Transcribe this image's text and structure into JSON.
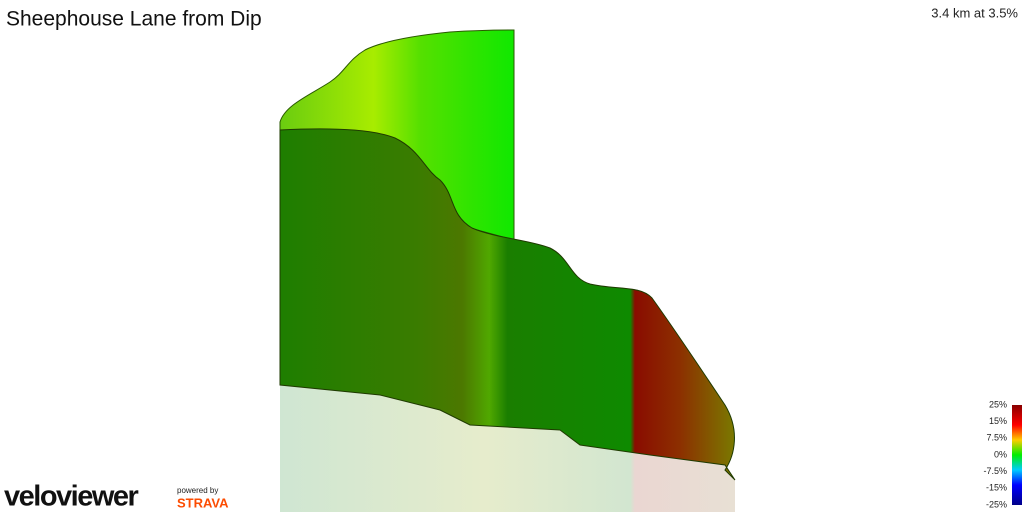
{
  "header": {
    "title": "Sheephouse Lane from Dip",
    "summary": "3.4 km at 3.5%"
  },
  "legend": {
    "ticks": [
      "25%",
      "15%",
      "7.5%",
      "0%",
      "-7.5%",
      "-15%",
      "-25%"
    ]
  },
  "branding": {
    "logo": "veloviewer",
    "powered_by": "powered by",
    "partner": "STRAVA"
  }
}
